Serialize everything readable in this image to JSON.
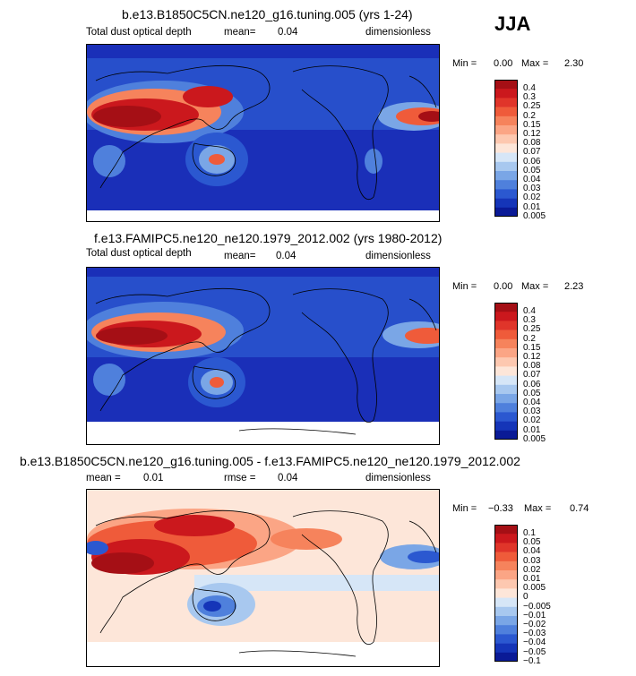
{
  "season": "JJA",
  "panels": [
    {
      "title": "b.e13.B1850C5CN.ne120_g16.tuning.005 (yrs 1-24)",
      "variable": "Total dust optical depth",
      "mean_label": "mean=",
      "mean_value": "0.04",
      "units": "dimensionless",
      "min_label": "Min =",
      "min_value": "0.00",
      "max_label": "Max =",
      "max_value": "2.30",
      "colorbar_levels": [
        "0.4",
        "0.3",
        "0.25",
        "0.2",
        "0.15",
        "0.12",
        "0.08",
        "0.07",
        "0.06",
        "0.05",
        "0.04",
        "0.03",
        "0.02",
        "0.01",
        "0.005"
      ]
    },
    {
      "title": "f.e13.FAMIPC5.ne120_ne120.1979_2012.002 (yrs 1980-2012)",
      "variable": "Total dust optical depth",
      "mean_label": "mean=",
      "mean_value": "0.04",
      "units": "dimensionless",
      "min_label": "Min =",
      "min_value": "0.00",
      "max_label": "Max =",
      "max_value": "2.23",
      "colorbar_levels": [
        "0.4",
        "0.3",
        "0.25",
        "0.2",
        "0.15",
        "0.12",
        "0.08",
        "0.07",
        "0.06",
        "0.05",
        "0.04",
        "0.03",
        "0.02",
        "0.01",
        "0.005"
      ]
    },
    {
      "title": "b.e13.B1850C5CN.ne120_g16.tuning.005 - f.e13.FAMIPC5.ne120_ne120.1979_2012.002",
      "mean_label": "mean =",
      "mean_value": "0.01",
      "rmse_label": "rmse =",
      "rmse_value": "0.04",
      "units": "dimensionless",
      "min_label": "Min =",
      "min_value": "−0.33",
      "max_label": "Max =",
      "max_value": "0.74",
      "colorbar_levels": [
        "0.1",
        "0.05",
        "0.04",
        "0.03",
        "0.02",
        "0.01",
        "0.005",
        "0",
        "−0.005",
        "−0.01",
        "−0.02",
        "−0.03",
        "−0.04",
        "−0.05",
        "−0.1"
      ]
    }
  ],
  "chart_data": [
    {
      "type": "heatmap",
      "title": "b.e13.B1850C5CN.ne120_g16.tuning.005 (yrs 1-24)",
      "variable": "Total dust optical depth",
      "mean": 0.04,
      "min": 0.0,
      "max": 2.3,
      "contour_levels": [
        0.005,
        0.01,
        0.02,
        0.03,
        0.04,
        0.05,
        0.06,
        0.07,
        0.08,
        0.12,
        0.15,
        0.2,
        0.25,
        0.3,
        0.4
      ]
    },
    {
      "type": "heatmap",
      "title": "f.e13.FAMIPC5.ne120_ne120.1979_2012.002 (yrs 1980-2012)",
      "variable": "Total dust optical depth",
      "mean": 0.04,
      "min": 0.0,
      "max": 2.23,
      "contour_levels": [
        0.005,
        0.01,
        0.02,
        0.03,
        0.04,
        0.05,
        0.06,
        0.07,
        0.08,
        0.12,
        0.15,
        0.2,
        0.25,
        0.3,
        0.4
      ]
    },
    {
      "type": "heatmap",
      "title": "b.e13.B1850C5CN.ne120_g16.tuning.005 - f.e13.FAMIPC5.ne120_ne120.1979_2012.002",
      "mean": 0.01,
      "rmse": 0.04,
      "min": -0.33,
      "max": 0.74,
      "contour_levels": [
        -0.1,
        -0.05,
        -0.04,
        -0.03,
        -0.02,
        -0.01,
        -0.005,
        0,
        0.005,
        0.01,
        0.02,
        0.03,
        0.04,
        0.05,
        0.1
      ]
    }
  ],
  "colors": {
    "seq": [
      "#a50f15",
      "#cb181d",
      "#e0352a",
      "#ef5b3a",
      "#f6835c",
      "#fba585",
      "#fdc8b0",
      "#fde6d9",
      "#d6e6f7",
      "#a8c8ef",
      "#7aa6e6",
      "#4f80dc",
      "#2b58d0",
      "#1535b8",
      "#0a1a96"
    ],
    "ocean_low": "#1a2fb8",
    "diff_bg": "#fde8dc"
  }
}
